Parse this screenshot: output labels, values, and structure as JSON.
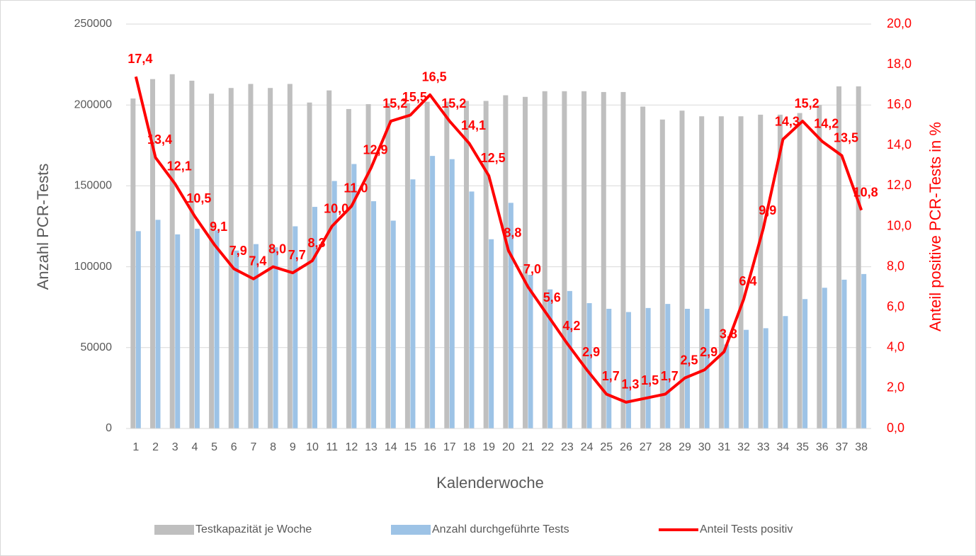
{
  "chart_data": {
    "type": "bar-line",
    "x_label": "Kalenderwoche",
    "y_label": "Anzahl PCR-Tests",
    "y2_label": "Anteil positive PCR-Tests in %",
    "categories": [
      "1",
      "2",
      "3",
      "4",
      "5",
      "6",
      "7",
      "8",
      "9",
      "10",
      "11",
      "12",
      "13",
      "14",
      "15",
      "16",
      "17",
      "18",
      "19",
      "20",
      "21",
      "22",
      "23",
      "24",
      "25",
      "26",
      "27",
      "28",
      "29",
      "30",
      "31",
      "32",
      "33",
      "34",
      "35",
      "36",
      "37",
      "38"
    ],
    "ylim": [
      0,
      250000
    ],
    "yticks": [
      0,
      50000,
      100000,
      150000,
      200000,
      250000
    ],
    "y2lim": [
      0,
      20
    ],
    "y2ticks": [
      {
        "value": 0,
        "label": "0,0"
      },
      {
        "value": 2,
        "label": "2,0"
      },
      {
        "value": 4,
        "label": "4,0"
      },
      {
        "value": 6,
        "label": "6,0"
      },
      {
        "value": 8,
        "label": "8,0"
      },
      {
        "value": 10,
        "label": "10,0"
      },
      {
        "value": 12,
        "label": "12,0"
      },
      {
        "value": 14,
        "label": "14,0"
      },
      {
        "value": 16,
        "label": "16,0"
      },
      {
        "value": 18,
        "label": "18,0"
      },
      {
        "value": 20,
        "label": "20,0"
      }
    ],
    "grid": true,
    "legend": "bottom",
    "series": [
      {
        "name": "Testkapazität je Woche",
        "type": "bar",
        "color": "#bfbfbf",
        "values": [
          204000,
          216000,
          219000,
          215000,
          207000,
          210500,
          213000,
          210500,
          213000,
          201500,
          209000,
          197500,
          200500,
          201000,
          201000,
          202000,
          202000,
          202500,
          202500,
          206000,
          205000,
          208500,
          208500,
          208500,
          208000,
          208000,
          199000,
          191000,
          196500,
          193000,
          193000,
          193000,
          194000,
          194000,
          195000,
          200000,
          211500,
          211500
        ]
      },
      {
        "name": "Anzahl durchgeführte Tests",
        "type": "bar",
        "color": "#9dc3e6",
        "values": [
          122000,
          129000,
          120000,
          123500,
          122500,
          110000,
          114000,
          112000,
          125000,
          137000,
          153000,
          163500,
          140500,
          128500,
          154000,
          168500,
          166500,
          146500,
          117000,
          139500,
          95000,
          86000,
          85000,
          77500,
          74000,
          72000,
          74500,
          77000,
          74000,
          74000,
          52000,
          61000,
          62000,
          69500,
          80000,
          87000,
          92000,
          95500
        ]
      },
      {
        "name": "Anteil Tests positiv",
        "type": "line",
        "axis": "y2",
        "color": "#ff0000",
        "values": [
          17.4,
          13.4,
          12.1,
          10.5,
          9.1,
          7.9,
          7.4,
          8.0,
          7.7,
          8.3,
          10.0,
          11.0,
          12.9,
          15.2,
          15.5,
          16.5,
          15.2,
          14.1,
          12.5,
          8.8,
          7.0,
          5.6,
          4.2,
          2.9,
          1.7,
          1.3,
          1.5,
          1.7,
          2.5,
          2.9,
          3.8,
          6.4,
          9.9,
          14.3,
          15.2,
          14.2,
          13.5,
          10.8
        ],
        "value_labels": [
          "17,4",
          "13,4",
          "12,1",
          "10,5",
          "9,1",
          "7,9",
          "7,4",
          "8,0",
          "7,7",
          "8,3",
          "10,0",
          "11,0",
          "12,9",
          "15,2",
          "15,5",
          "16,5",
          "15,2",
          "14,1",
          "12,5",
          "8,8",
          "7,0",
          "5,6",
          "4,2",
          "2,9",
          "1,7",
          "1,3",
          "1,5",
          "1,7",
          "2,5",
          "2,9",
          "3,8",
          "6,4",
          "9,9",
          "14,3",
          "15,2",
          "14,2",
          "13,5",
          "10,8"
        ]
      }
    ]
  }
}
